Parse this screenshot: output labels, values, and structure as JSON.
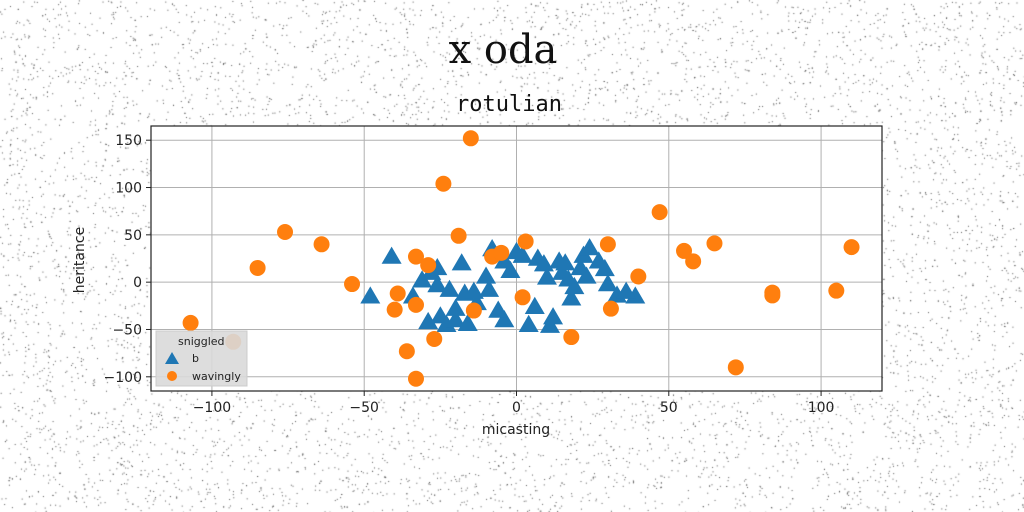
{
  "chart_data": {
    "type": "scatter",
    "suptitle": "x oda",
    "title": "rotulian",
    "xlabel": "micasting",
    "ylabel": "heritance",
    "xlim": [
      -120,
      120
    ],
    "ylim": [
      -115,
      165
    ],
    "xticks": [
      -100,
      -50,
      0,
      50,
      100
    ],
    "yticks": [
      -100,
      -50,
      0,
      50,
      100,
      150
    ],
    "xtick_labels": [
      "−100",
      "−50",
      "0",
      "50",
      "100"
    ],
    "ytick_labels": [
      "−100",
      "−50",
      "0",
      "50",
      "100",
      "150"
    ],
    "grid": true,
    "legend": {
      "title": "sniggled",
      "location": "lower-left"
    },
    "series": [
      {
        "name": "b",
        "marker": "triangle",
        "color": "#1f77b4",
        "points": [
          [
            -48,
            -15
          ],
          [
            -41,
            27
          ],
          [
            -31,
            2
          ],
          [
            -28,
            10
          ],
          [
            -26,
            15
          ],
          [
            -26,
            -3
          ],
          [
            -29,
            -42
          ],
          [
            -25,
            -36
          ],
          [
            -23,
            -45
          ],
          [
            -20,
            -40
          ],
          [
            -22,
            -8
          ],
          [
            -17,
            -12
          ],
          [
            -16,
            -44
          ],
          [
            -13,
            -22
          ],
          [
            -18,
            20
          ],
          [
            -10,
            6
          ],
          [
            -9,
            -8
          ],
          [
            -8,
            35
          ],
          [
            -4,
            -40
          ],
          [
            -2,
            12
          ],
          [
            0,
            32
          ],
          [
            4,
            -45
          ],
          [
            6,
            -26
          ],
          [
            7,
            25
          ],
          [
            9,
            19
          ],
          [
            10,
            5
          ],
          [
            11,
            -46
          ],
          [
            12,
            -37
          ],
          [
            14,
            22
          ],
          [
            15,
            10
          ],
          [
            17,
            3
          ],
          [
            18,
            -17
          ],
          [
            19,
            -5
          ],
          [
            21,
            15
          ],
          [
            22,
            28
          ],
          [
            23,
            6
          ],
          [
            24,
            36
          ],
          [
            27,
            22
          ],
          [
            30,
            -2
          ],
          [
            33,
            -14
          ],
          [
            39,
            -15
          ],
          [
            29,
            14
          ],
          [
            -34,
            -15
          ],
          [
            -14,
            -10
          ],
          [
            -6,
            -30
          ],
          [
            2,
            28
          ],
          [
            16,
            20
          ],
          [
            -20,
            -28
          ],
          [
            36,
            -10
          ],
          [
            -4,
            22
          ]
        ]
      },
      {
        "name": "wavingly",
        "marker": "circle",
        "color": "#ff7f0e",
        "points": [
          [
            -107,
            -43
          ],
          [
            -93,
            -63
          ],
          [
            -85,
            15
          ],
          [
            -76,
            53
          ],
          [
            -64,
            40
          ],
          [
            -54,
            -2
          ],
          [
            -40,
            -29
          ],
          [
            -39,
            -12
          ],
          [
            -36,
            -73
          ],
          [
            -33,
            -102
          ],
          [
            -33,
            27
          ],
          [
            -33,
            -24
          ],
          [
            -29,
            18
          ],
          [
            -27,
            -60
          ],
          [
            -24,
            104
          ],
          [
            -19,
            49
          ],
          [
            -15,
            152
          ],
          [
            -14,
            -30
          ],
          [
            -8,
            27
          ],
          [
            -5,
            31
          ],
          [
            2,
            -16
          ],
          [
            3,
            43
          ],
          [
            18,
            -58
          ],
          [
            30,
            40
          ],
          [
            31,
            -28
          ],
          [
            40,
            6
          ],
          [
            47,
            74
          ],
          [
            55,
            33
          ],
          [
            58,
            22
          ],
          [
            65,
            41
          ],
          [
            72,
            -90
          ],
          [
            84,
            -11
          ],
          [
            84,
            -14
          ],
          [
            105,
            -9
          ],
          [
            110,
            37
          ]
        ]
      }
    ]
  }
}
